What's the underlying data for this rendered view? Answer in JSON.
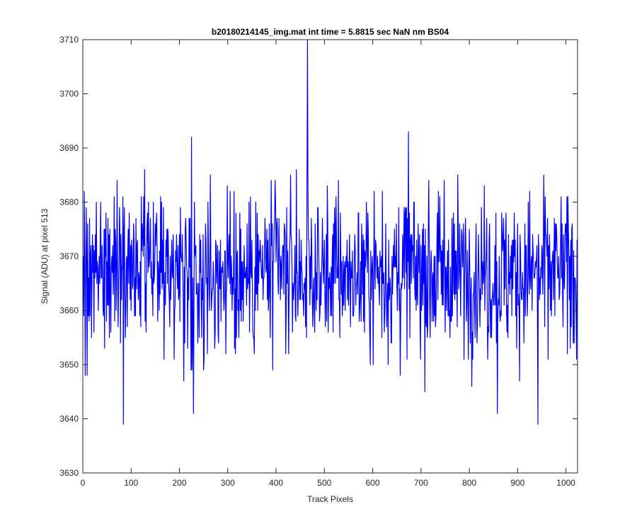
{
  "chart_data": {
    "type": "line",
    "title": "b20180214145_img.mat int time = 5.8815 sec  NaN nm BS04",
    "xlabel": "Track Pixels",
    "ylabel": "Signal (ADU) at pixel 513",
    "xlim": [
      0,
      1024
    ],
    "ylim": [
      3630,
      3710
    ],
    "xticks": [
      0,
      100,
      200,
      300,
      400,
      500,
      600,
      700,
      800,
      900,
      1000
    ],
    "yticks": [
      3630,
      3640,
      3650,
      3660,
      3670,
      3680,
      3690,
      3700,
      3710
    ],
    "grid": false,
    "legend": "none",
    "series": [
      {
        "color": "#0000ff",
        "x_start": 1,
        "x_step": 1,
        "y_min": 3639,
        "y_max": 3710,
        "y_mean": 3667,
        "highlights": [
          {
            "x": 84,
            "y": 3639
          },
          {
            "x": 225,
            "y": 3692
          },
          {
            "x": 229,
            "y": 3641
          },
          {
            "x": 465,
            "y": 3710
          },
          {
            "x": 674,
            "y": 3693
          },
          {
            "x": 858,
            "y": 3641
          },
          {
            "x": 942,
            "y": 3639
          }
        ]
      }
    ]
  }
}
